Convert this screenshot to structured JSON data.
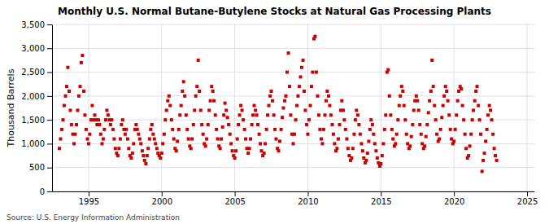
{
  "chart_data": {
    "type": "scatter",
    "title": "Monthly U.S. Normal Butane-Butylene Stocks at Natural Gas Processing Plants",
    "ylabel": "Thousand Barrels",
    "annotations": [
      "Source: U.S. Energy Information Administration"
    ],
    "color": "#cc0000",
    "marker": "square",
    "grid": true,
    "xlim": [
      1992.5,
      2025.5
    ],
    "ylim": [
      0,
      3500
    ],
    "xticks": [
      1995,
      2000,
      2005,
      2010,
      2015,
      2020,
      2025
    ],
    "yticks": [
      0,
      500,
      {
        "value": 1000,
        "label": "1,000"
      },
      {
        "value": 1500,
        "label": "1,500"
      },
      {
        "value": 2000,
        "label": "2,000"
      },
      {
        "value": 2500,
        "label": "2,500"
      },
      {
        "value": 3000,
        "label": "3,000"
      },
      {
        "value": 3500,
        "label": "3,500"
      }
    ],
    "x": [
      1993.0,
      1993.08,
      1993.17,
      1993.25,
      1993.33,
      1993.42,
      1993.5,
      1993.58,
      1993.67,
      1993.75,
      1993.83,
      1993.92,
      1994.0,
      1994.08,
      1994.17,
      1994.25,
      1994.33,
      1994.42,
      1994.5,
      1994.58,
      1994.67,
      1994.75,
      1994.83,
      1994.92,
      1995.0,
      1995.08,
      1995.17,
      1995.25,
      1995.33,
      1995.42,
      1995.5,
      1995.58,
      1995.67,
      1995.75,
      1995.83,
      1995.92,
      1996.0,
      1996.08,
      1996.17,
      1996.25,
      1996.33,
      1996.42,
      1996.5,
      1996.58,
      1996.67,
      1996.75,
      1996.83,
      1996.92,
      1997.0,
      1997.08,
      1997.17,
      1997.25,
      1997.33,
      1997.42,
      1997.5,
      1997.58,
      1997.67,
      1997.75,
      1997.83,
      1997.92,
      1998.0,
      1998.08,
      1998.17,
      1998.25,
      1998.33,
      1998.42,
      1998.5,
      1998.58,
      1998.67,
      1998.75,
      1998.83,
      1998.92,
      1999.0,
      1999.08,
      1999.17,
      1999.25,
      1999.33,
      1999.42,
      1999.5,
      1999.58,
      1999.67,
      1999.75,
      1999.83,
      1999.92,
      2000.0,
      2000.08,
      2000.17,
      2000.25,
      2000.33,
      2000.42,
      2000.5,
      2000.58,
      2000.67,
      2000.75,
      2000.83,
      2000.92,
      2001.0,
      2001.08,
      2001.17,
      2001.25,
      2001.33,
      2001.42,
      2001.5,
      2001.58,
      2001.67,
      2001.75,
      2001.83,
      2001.92,
      2002.0,
      2002.08,
      2002.17,
      2002.25,
      2002.33,
      2002.42,
      2002.5,
      2002.58,
      2002.67,
      2002.75,
      2002.83,
      2002.92,
      2003.0,
      2003.08,
      2003.17,
      2003.25,
      2003.33,
      2003.42,
      2003.5,
      2003.58,
      2003.67,
      2003.75,
      2003.83,
      2003.92,
      2004.0,
      2004.08,
      2004.17,
      2004.25,
      2004.33,
      2004.42,
      2004.5,
      2004.58,
      2004.67,
      2004.75,
      2004.83,
      2004.92,
      2005.0,
      2005.08,
      2005.17,
      2005.25,
      2005.33,
      2005.42,
      2005.5,
      2005.58,
      2005.67,
      2005.75,
      2005.83,
      2005.92,
      2006.0,
      2006.08,
      2006.17,
      2006.25,
      2006.33,
      2006.42,
      2006.5,
      2006.58,
      2006.67,
      2006.75,
      2006.83,
      2006.92,
      2007.0,
      2007.08,
      2007.17,
      2007.25,
      2007.33,
      2007.42,
      2007.5,
      2007.58,
      2007.67,
      2007.75,
      2007.83,
      2007.92,
      2008.0,
      2008.08,
      2008.17,
      2008.25,
      2008.33,
      2008.42,
      2008.5,
      2008.58,
      2008.67,
      2008.75,
      2008.83,
      2008.92,
      2009.0,
      2009.08,
      2009.17,
      2009.25,
      2009.33,
      2009.42,
      2009.5,
      2009.58,
      2009.67,
      2009.75,
      2009.83,
      2009.92,
      2010.0,
      2010.08,
      2010.17,
      2010.25,
      2010.33,
      2010.42,
      2010.5,
      2010.58,
      2010.67,
      2010.75,
      2010.83,
      2010.92,
      2011.0,
      2011.08,
      2011.17,
      2011.25,
      2011.33,
      2011.42,
      2011.5,
      2011.58,
      2011.67,
      2011.75,
      2011.83,
      2011.92,
      2012.0,
      2012.08,
      2012.17,
      2012.25,
      2012.33,
      2012.42,
      2012.5,
      2012.58,
      2012.67,
      2012.75,
      2012.83,
      2012.92,
      2013.0,
      2013.08,
      2013.17,
      2013.25,
      2013.33,
      2013.42,
      2013.5,
      2013.58,
      2013.67,
      2013.75,
      2013.83,
      2013.92,
      2014.0,
      2014.08,
      2014.17,
      2014.25,
      2014.33,
      2014.42,
      2014.5,
      2014.58,
      2014.67,
      2014.75,
      2014.83,
      2014.92,
      2015.0,
      2015.08,
      2015.17,
      2015.25,
      2015.33,
      2015.42,
      2015.5,
      2015.58,
      2015.67,
      2015.75,
      2015.83,
      2015.92,
      2016.0,
      2016.08,
      2016.17,
      2016.25,
      2016.33,
      2016.42,
      2016.5,
      2016.58,
      2016.67,
      2016.75,
      2016.83,
      2016.92,
      2017.0,
      2017.08,
      2017.17,
      2017.25,
      2017.33,
      2017.42,
      2017.5,
      2017.58,
      2017.67,
      2017.75,
      2017.83,
      2017.92,
      2018.0,
      2018.08,
      2018.17,
      2018.25,
      2018.33,
      2018.42,
      2018.5,
      2018.58,
      2018.67,
      2018.75,
      2018.83,
      2018.92,
      2019.0,
      2019.08,
      2019.17,
      2019.25,
      2019.33,
      2019.42,
      2019.5,
      2019.58,
      2019.67,
      2019.75,
      2019.83,
      2019.92,
      2020.0,
      2020.08,
      2020.17,
      2020.25,
      2020.33,
      2020.42,
      2020.5,
      2020.58,
      2020.67,
      2020.75,
      2020.83,
      2020.92,
      2021.0,
      2021.08,
      2021.17,
      2021.25,
      2021.33,
      2021.42,
      2021.5,
      2021.58,
      2021.67,
      2021.75,
      2021.83,
      2021.92,
      2022.0,
      2022.08,
      2022.17,
      2022.25,
      2022.33,
      2022.42,
      2022.5,
      2022.58,
      2022.67,
      2022.75,
      2022.83,
      2022.92
    ],
    "values": [
      900,
      1100,
      1300,
      1500,
      1800,
      2000,
      2200,
      2600,
      2100,
      1700,
      1400,
      1200,
      1000,
      1200,
      1400,
      1700,
      2000,
      2200,
      2700,
      2850,
      2100,
      1600,
      1300,
      1100,
      1000,
      1200,
      1500,
      1800,
      1500,
      1600,
      1500,
      1400,
      1500,
      1400,
      1200,
      1000,
      1100,
      1300,
      1500,
      1700,
      1600,
      1500,
      1400,
      1500,
      1300,
      1100,
      900,
      800,
      750,
      900,
      1100,
      1400,
      1500,
      1300,
      1200,
      1300,
      1100,
      900,
      750,
      700,
      800,
      1000,
      1300,
      1400,
      1300,
      1200,
      1100,
      1000,
      850,
      750,
      650,
      580,
      750,
      900,
      1100,
      1300,
      1400,
      1200,
      1100,
      1000,
      900,
      800,
      750,
      700,
      800,
      1000,
      1200,
      1500,
      1700,
      1900,
      2000,
      1800,
      1500,
      1300,
      1100,
      900,
      850,
      1050,
      1300,
      1600,
      1800,
      2100,
      2300,
      2000,
      1600,
      1300,
      1100,
      950,
      900,
      1100,
      1400,
      1700,
      2000,
      2200,
      2750,
      2100,
      1700,
      1400,
      1200,
      1000,
      950,
      1100,
      1400,
      1700,
      1900,
      2200,
      2100,
      1900,
      1600,
      1300,
      1100,
      950,
      900,
      1100,
      1350,
      1600,
      1850,
      1700,
      1550,
      1400,
      1200,
      1000,
      850,
      750,
      700,
      850,
      1100,
      1400,
      1600,
      1800,
      1700,
      1500,
      1300,
      1100,
      900,
      800,
      900,
      1100,
      1400,
      1600,
      1800,
      1700,
      1600,
      1400,
      1200,
      1000,
      850,
      750,
      800,
      1000,
      1300,
      1600,
      1800,
      2000,
      2100,
      1900,
      1600,
      1300,
      1100,
      900,
      850,
      1050,
      1300,
      1550,
      1750,
      1900,
      2000,
      2500,
      2900,
      2200,
      1600,
      1200,
      1000,
      1200,
      1500,
      1800,
      2000,
      2200,
      2400,
      2600,
      2750,
      2100,
      1700,
      1400,
      1200,
      1500,
      1800,
      2200,
      2500,
      3200,
      3250,
      2500,
      2000,
      1600,
      1300,
      1100,
      1000,
      1300,
      1600,
      1900,
      2100,
      2000,
      1800,
      1600,
      1400,
      1200,
      1000,
      850,
      900,
      1100,
      1400,
      1700,
      1900,
      1700,
      1500,
      1300,
      1100,
      900,
      750,
      650,
      700,
      900,
      1200,
      1500,
      1700,
      1600,
      1400,
      1200,
      1000,
      850,
      700,
      600,
      650,
      800,
      1050,
      1300,
      1500,
      1400,
      1200,
      1000,
      850,
      700,
      600,
      530,
      580,
      750,
      1000,
      1300,
      1600,
      2500,
      2550,
      2000,
      1600,
      1300,
      1100,
      950,
      1000,
      1200,
      1500,
      1800,
      2000,
      2200,
      2100,
      1800,
      1500,
      1200,
      1000,
      900,
      950,
      1150,
      1400,
      1700,
      1900,
      2000,
      1900,
      1700,
      1400,
      1200,
      1000,
      900,
      950,
      1150,
      1400,
      1650,
      1900,
      2100,
      2750,
      2200,
      1800,
      1500,
      1200,
      1050,
      1100,
      1300,
      1550,
      1800,
      2000,
      2200,
      2100,
      1900,
      1600,
      1300,
      1100,
      1000,
      1050,
      1300,
      1600,
      1900,
      2100,
      2200,
      2150,
      1800,
      1500,
      1200,
      900,
      700,
      750,
      950,
      1200,
      1500,
      1700,
      1900,
      2100,
      2200,
      1800,
      1500,
      1200,
      420,
      650,
      800,
      1050,
      1300,
      1600,
      1800,
      1700,
      1500,
      1200,
      900,
      750,
      650
    ]
  }
}
